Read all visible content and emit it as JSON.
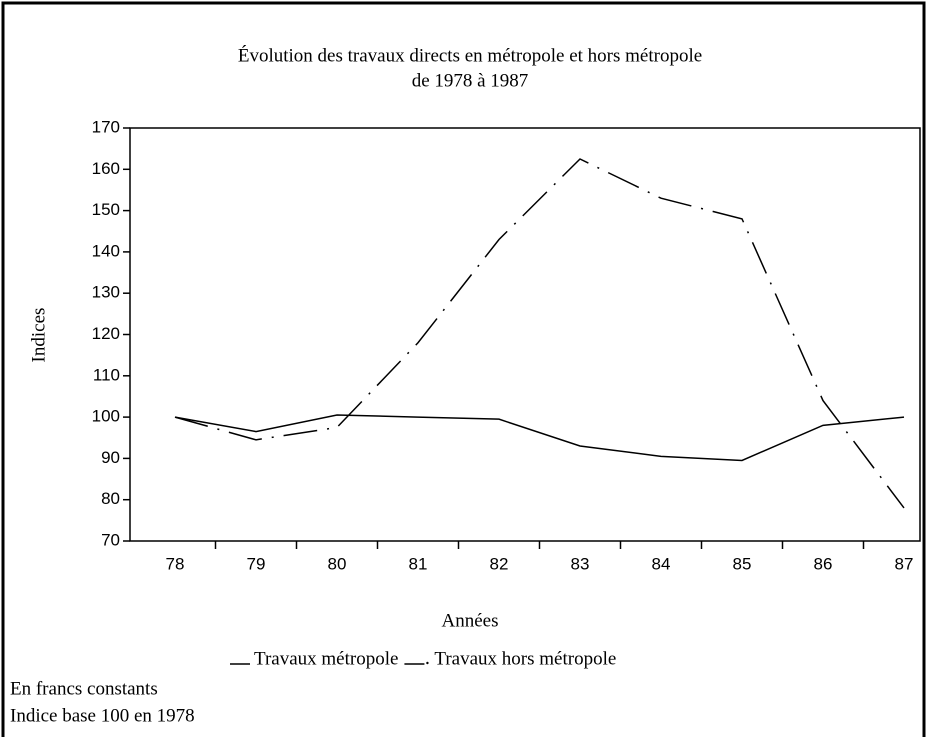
{
  "chart_data": {
    "type": "line",
    "title": "Évolution des travaux directs en métropole et hors métropole",
    "subtitle": "de 1978 à 1987",
    "x_label": "Années",
    "y_label": "Indices",
    "categories": [
      "78",
      "79",
      "80",
      "81",
      "82",
      "83",
      "84",
      "85",
      "86",
      "87"
    ],
    "series": [
      {
        "name": "Travaux métropole",
        "color": "#000000",
        "style": "solid",
        "values": [
          100,
          96.5,
          100.5,
          100,
          99.5,
          93,
          90.5,
          89.5,
          98,
          100
        ]
      },
      {
        "name": "Travaux hors métropole",
        "color": "#000000",
        "style": "dashdot",
        "values": [
          100,
          94.5,
          97.5,
          118,
          143,
          162.5,
          153,
          148,
          104,
          78
        ]
      }
    ],
    "ylim": [
      70,
      170
    ],
    "yticks": [
      70,
      80,
      90,
      100,
      110,
      120,
      130,
      140,
      150,
      160,
      170
    ],
    "grid": false,
    "notes": [
      "En francs constants",
      "Indice base 100 en 1978"
    ]
  }
}
